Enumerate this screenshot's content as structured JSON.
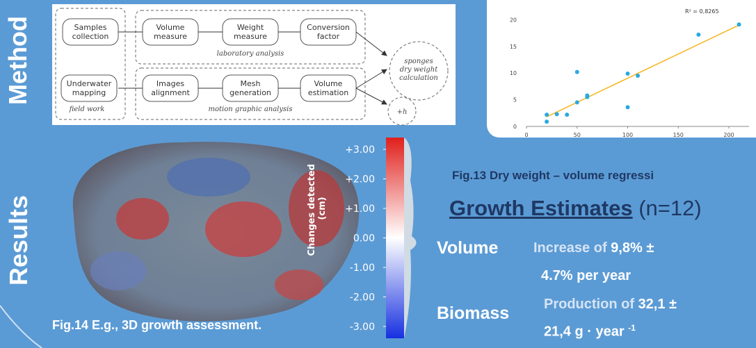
{
  "sections": {
    "method": "Method",
    "results": "Results"
  },
  "method": {
    "nodes": [
      [
        "Samples",
        "collection"
      ],
      [
        "Volume",
        "measure"
      ],
      [
        "Weight",
        "measure"
      ],
      [
        "Conversion",
        "factor"
      ],
      [
        "Underwater",
        "mapping"
      ],
      [
        "Images",
        "alignment"
      ],
      [
        "Mesh",
        "generation"
      ],
      [
        "Volume",
        "estimation"
      ]
    ],
    "groups": [
      "laboratory analysis",
      "field work",
      "motion graphic analysis"
    ],
    "result": [
      "sponges",
      "dry weight",
      "calculation"
    ],
    "extra": "+h"
  },
  "chart_data": {
    "type": "scatter",
    "annotation": "R² = 0,8265",
    "color": "#2aa9e0",
    "trend_color": "#f5b51b",
    "x": [
      20,
      20,
      30,
      40,
      50,
      50,
      60,
      60,
      100,
      100,
      110,
      170,
      210
    ],
    "values": [
      2.2,
      0.9,
      2.3,
      2.2,
      10.2,
      4.5,
      5.5,
      5.8,
      9.9,
      3.6,
      9.5,
      17.2,
      19.1
    ],
    "trendline": {
      "x": [
        20,
        210
      ],
      "y": [
        1.8,
        19
      ]
    },
    "xlim": [
      0,
      220
    ],
    "ylim": [
      0,
      22
    ],
    "xticks": [
      0,
      50,
      100,
      150,
      200
    ],
    "yticks": [
      0,
      5,
      10,
      15,
      20
    ]
  },
  "fig13_caption": "Fig.13  Dry weight – volume regressi",
  "figure14": {
    "caption": "Fig.14  E.g., 3D growth assessment.",
    "colorbar": {
      "label_lines": [
        "Changes detected",
        "(cm)"
      ],
      "lim": [
        -3.4,
        3.4
      ],
      "ticks": [
        {
          "value": 3,
          "label": "+3.00"
        },
        {
          "value": 2,
          "label": "+2.00"
        },
        {
          "value": 1,
          "label": "+1.00"
        },
        {
          "value": 0,
          "label": "0.00"
        },
        {
          "value": -1,
          "label": "-1.00"
        },
        {
          "value": -2,
          "label": "-2.00"
        },
        {
          "value": -3,
          "label": "-3.00"
        }
      ]
    }
  },
  "growth": {
    "heading": "Growth Estimates",
    "n": "(n=12)",
    "rows": [
      {
        "label": "Volume",
        "pre": "Increase of",
        "value": "9,8% ±",
        "line2": "4.7% per year"
      },
      {
        "label": "Biomass",
        "pre": "Production of",
        "value": "32,1 ±",
        "line2": "21,4 g · year",
        "sup": "-1"
      }
    ]
  }
}
